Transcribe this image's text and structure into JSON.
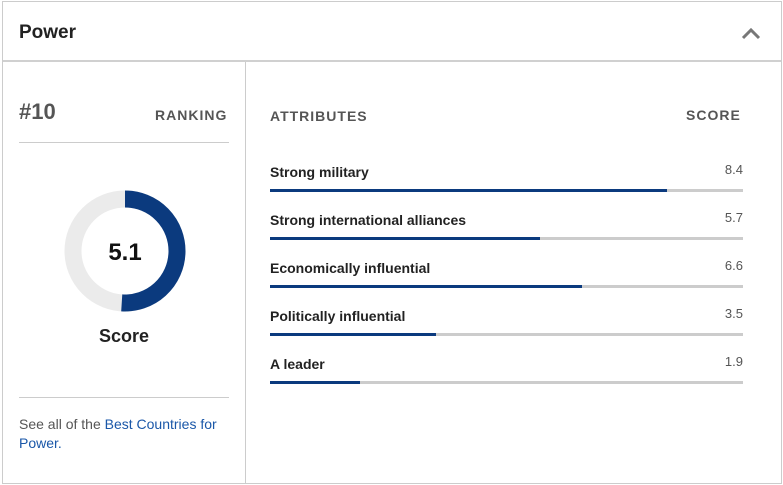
{
  "header": {
    "title": "Power"
  },
  "ranking": {
    "rank": "#10",
    "label": "RANKING"
  },
  "score": {
    "value": 5.1,
    "label": "Score",
    "range": [
      0,
      10
    ]
  },
  "footer": {
    "text": "See all of the",
    "link": "Best Countries for Power."
  },
  "attributes": {
    "heading": "ATTRIBUTES",
    "score_heading": "SCORE",
    "range": [
      0,
      10
    ],
    "items": [
      {
        "name": "Strong military",
        "value": 8.4
      },
      {
        "name": "Strong international alliances",
        "value": 5.7
      },
      {
        "name": "Economically influential",
        "value": 6.6
      },
      {
        "name": "Politically influential",
        "value": 3.5
      },
      {
        "name": "A leader",
        "value": 1.9
      }
    ]
  }
}
